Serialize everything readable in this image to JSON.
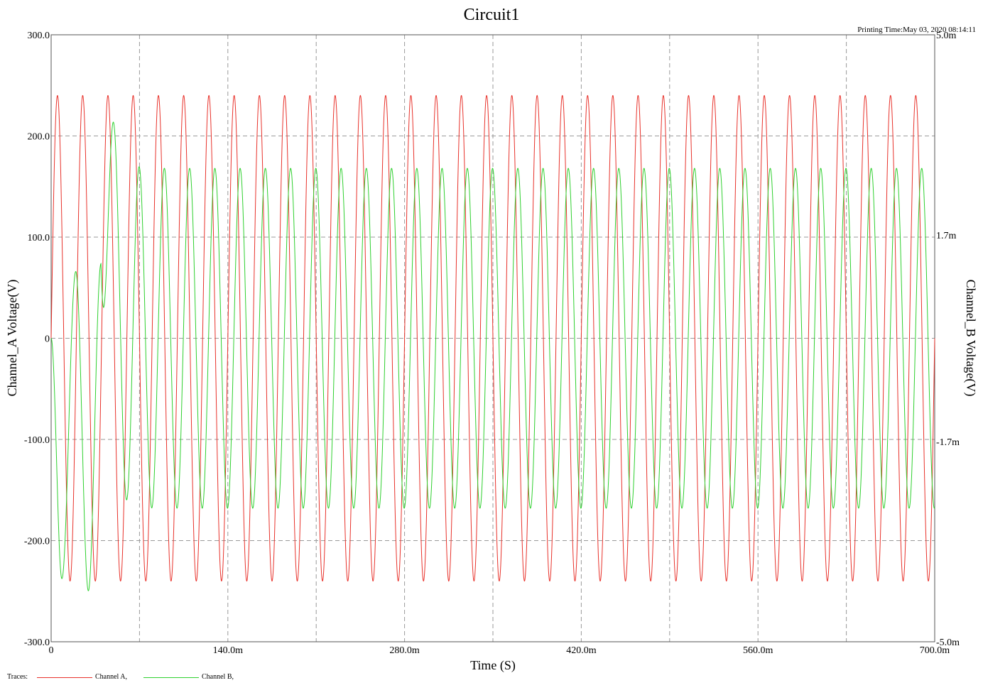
{
  "chart_data": {
    "type": "line",
    "title": "Circuit1",
    "printing_time": "Printing Time:May 03, 2020 08:14:11",
    "xlabel": "Time (S)",
    "ylabel_left": "Channel_A Voltage(V)",
    "ylabel_right": "Channel_B Voltage(V)",
    "xlim": [
      0,
      0.7
    ],
    "ylim_left": [
      -300,
      300
    ],
    "ylim_right": [
      -0.005,
      0.005
    ],
    "x_ticks": [
      "0",
      "140.0m",
      "280.0m",
      "420.0m",
      "560.0m",
      "700.0m"
    ],
    "y_ticks_left": [
      "300.0",
      "200.0",
      "100.0",
      "0",
      "-100.0",
      "-200.0",
      "-300.0"
    ],
    "y_ticks_right": [
      "5.0m",
      "1.7m",
      "-1.7m",
      "-5.0m"
    ],
    "grid": true,
    "series": [
      {
        "name": "Channel A",
        "axis": "left",
        "color": "#e8322b",
        "waveform": "sine",
        "amplitude": 240,
        "frequency_hz": 50,
        "phase_deg": 0
      },
      {
        "name": "Channel B",
        "axis": "right",
        "color": "#2fd02f",
        "waveform": "sine with startup transient",
        "amplitude": 0.0028,
        "frequency_hz": 50,
        "phase_deg": -85,
        "transient_peaks": [
          {
            "x": 0.0085,
            "y": -0.00396
          },
          {
            "x": 0.0195,
            "y": 0.0011
          },
          {
            "x": 0.0295,
            "y": -0.00416
          },
          {
            "x": 0.0395,
            "y": 0.00123
          }
        ]
      }
    ],
    "legend": {
      "label": "Traces:",
      "entries": [
        "Channel A,",
        "Channel B,"
      ],
      "placement": "bottom-left"
    }
  }
}
